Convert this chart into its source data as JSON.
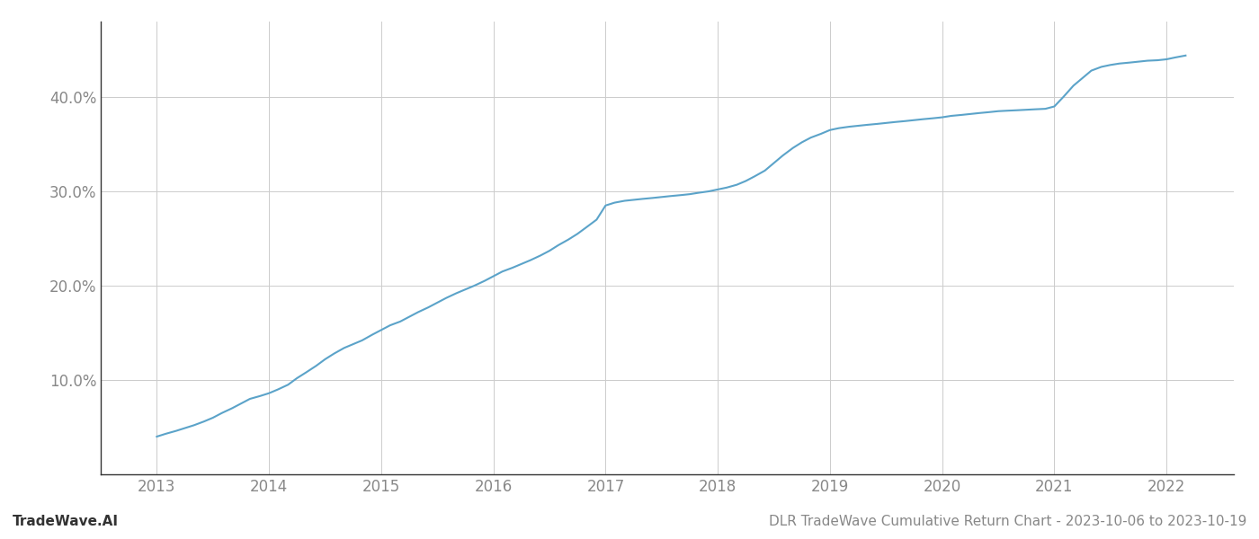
{
  "x_years": [
    2013.0,
    2013.08,
    2013.17,
    2013.25,
    2013.33,
    2013.42,
    2013.5,
    2013.58,
    2013.67,
    2013.75,
    2013.83,
    2013.92,
    2014.0,
    2014.08,
    2014.17,
    2014.25,
    2014.33,
    2014.42,
    2014.5,
    2014.58,
    2014.67,
    2014.75,
    2014.83,
    2014.92,
    2015.0,
    2015.08,
    2015.17,
    2015.25,
    2015.33,
    2015.42,
    2015.5,
    2015.58,
    2015.67,
    2015.75,
    2015.83,
    2015.92,
    2016.0,
    2016.08,
    2016.17,
    2016.25,
    2016.33,
    2016.42,
    2016.5,
    2016.58,
    2016.67,
    2016.75,
    2016.83,
    2016.92,
    2017.0,
    2017.08,
    2017.17,
    2017.25,
    2017.33,
    2017.42,
    2017.5,
    2017.58,
    2017.67,
    2017.75,
    2017.83,
    2017.92,
    2018.0,
    2018.08,
    2018.17,
    2018.25,
    2018.33,
    2018.42,
    2018.5,
    2018.58,
    2018.67,
    2018.75,
    2018.83,
    2018.92,
    2019.0,
    2019.08,
    2019.17,
    2019.25,
    2019.33,
    2019.42,
    2019.5,
    2019.58,
    2019.67,
    2019.75,
    2019.83,
    2019.92,
    2020.0,
    2020.08,
    2020.17,
    2020.25,
    2020.33,
    2020.42,
    2020.5,
    2020.58,
    2020.67,
    2020.75,
    2020.83,
    2020.92,
    2021.0,
    2021.08,
    2021.17,
    2021.25,
    2021.33,
    2021.42,
    2021.5,
    2021.58,
    2021.67,
    2021.75,
    2021.83,
    2021.92,
    2022.0,
    2022.08,
    2022.17
  ],
  "y_values": [
    4.0,
    4.3,
    4.6,
    4.9,
    5.2,
    5.6,
    6.0,
    6.5,
    7.0,
    7.5,
    8.0,
    8.3,
    8.6,
    9.0,
    9.5,
    10.2,
    10.8,
    11.5,
    12.2,
    12.8,
    13.4,
    13.8,
    14.2,
    14.8,
    15.3,
    15.8,
    16.2,
    16.7,
    17.2,
    17.7,
    18.2,
    18.7,
    19.2,
    19.6,
    20.0,
    20.5,
    21.0,
    21.5,
    21.9,
    22.3,
    22.7,
    23.2,
    23.7,
    24.3,
    24.9,
    25.5,
    26.2,
    27.0,
    28.5,
    28.8,
    29.0,
    29.1,
    29.2,
    29.3,
    29.4,
    29.5,
    29.6,
    29.7,
    29.85,
    30.0,
    30.2,
    30.4,
    30.7,
    31.1,
    31.6,
    32.2,
    33.0,
    33.8,
    34.6,
    35.2,
    35.7,
    36.1,
    36.5,
    36.7,
    36.85,
    36.95,
    37.05,
    37.15,
    37.25,
    37.35,
    37.45,
    37.55,
    37.65,
    37.75,
    37.85,
    38.0,
    38.1,
    38.2,
    38.3,
    38.4,
    38.5,
    38.55,
    38.6,
    38.65,
    38.7,
    38.75,
    39.0,
    40.0,
    41.2,
    42.0,
    42.8,
    43.2,
    43.4,
    43.55,
    43.65,
    43.75,
    43.85,
    43.9,
    44.0,
    44.2,
    44.4
  ],
  "line_color": "#5ba3c9",
  "background_color": "#ffffff",
  "grid_color": "#cccccc",
  "axis_color": "#333333",
  "label_color": "#888888",
  "footer_left": "TradeWave.AI",
  "footer_right": "DLR TradeWave Cumulative Return Chart - 2023-10-06 to 2023-10-19",
  "ylim": [
    0,
    48
  ],
  "yticks": [
    10.0,
    20.0,
    30.0,
    40.0
  ],
  "xticks": [
    2013,
    2014,
    2015,
    2016,
    2017,
    2018,
    2019,
    2020,
    2021,
    2022
  ],
  "line_width": 1.5,
  "footer_fontsize": 11,
  "tick_fontsize": 12
}
